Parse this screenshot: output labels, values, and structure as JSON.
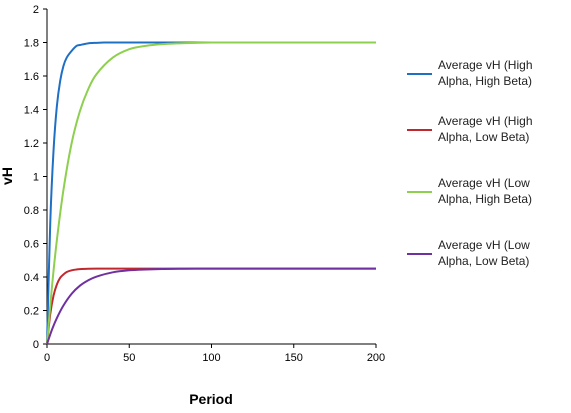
{
  "chart_data": {
    "type": "line",
    "title": "",
    "xlabel": "Period",
    "ylabel": "vH",
    "xlim": [
      0,
      200
    ],
    "ylim": [
      0,
      2
    ],
    "xticks": [
      0,
      50,
      100,
      150,
      200
    ],
    "yticks": [
      0,
      0.2,
      0.4,
      0.6,
      0.8,
      1,
      1.2,
      1.4,
      1.6,
      1.8,
      2
    ],
    "ytick_labels": [
      "0",
      "0.2",
      "0.4",
      "0.6",
      "0.8",
      "1",
      "1.2",
      "1.4",
      "1.6",
      "1.8",
      "2"
    ],
    "grid": false,
    "legend_position": "right",
    "series": [
      {
        "name": "Average vH (High Alpha, High Beta)",
        "legend_lines": [
          "Average vH (High",
          "Alpha, High Beta)"
        ],
        "color": "#1f6fc5",
        "x": [
          0,
          2,
          4,
          6,
          8,
          10,
          12,
          15,
          18,
          20,
          25,
          30,
          35,
          40,
          50,
          60,
          80,
          100,
          150,
          200
        ],
        "y": [
          0,
          0.73,
          1.16,
          1.42,
          1.57,
          1.66,
          1.71,
          1.75,
          1.78,
          1.785,
          1.795,
          1.798,
          1.8,
          1.8,
          1.8,
          1.8,
          1.8,
          1.8,
          1.8,
          1.8
        ]
      },
      {
        "name": "Average vH (High Alpha, Low Beta)",
        "legend_lines": [
          "Average vH (High",
          "Alpha, Low Beta)"
        ],
        "color": "#c0282d",
        "x": [
          0,
          2,
          4,
          6,
          8,
          10,
          12,
          15,
          18,
          20,
          25,
          30,
          40,
          50,
          60,
          80,
          100,
          150,
          200
        ],
        "y": [
          0,
          0.18,
          0.29,
          0.355,
          0.395,
          0.415,
          0.43,
          0.44,
          0.445,
          0.447,
          0.449,
          0.45,
          0.45,
          0.45,
          0.45,
          0.45,
          0.45,
          0.45,
          0.45
        ]
      },
      {
        "name": "Average vH (Low Alpha, High Beta)",
        "legend_lines": [
          "Average vH (Low",
          "Alpha, High Beta)"
        ],
        "color": "#8dcf4e",
        "x": [
          0,
          3,
          6,
          10,
          15,
          20,
          25,
          30,
          40,
          50,
          60,
          70,
          80,
          90,
          100,
          120,
          150,
          200
        ],
        "y": [
          0,
          0.34,
          0.62,
          0.92,
          1.2,
          1.39,
          1.52,
          1.61,
          1.71,
          1.76,
          1.78,
          1.79,
          1.795,
          1.798,
          1.8,
          1.8,
          1.8,
          1.8
        ]
      },
      {
        "name": "Average vH (Low Alpha, Low Beta)",
        "legend_lines": [
          "Average vH (Low",
          "Alpha, Low Beta)"
        ],
        "color": "#7030a0",
        "x": [
          0,
          3,
          6,
          10,
          15,
          20,
          25,
          30,
          40,
          50,
          60,
          70,
          80,
          90,
          100,
          120,
          150,
          200
        ],
        "y": [
          0,
          0.085,
          0.155,
          0.23,
          0.3,
          0.348,
          0.38,
          0.402,
          0.428,
          0.44,
          0.445,
          0.448,
          0.449,
          0.45,
          0.45,
          0.45,
          0.45,
          0.45
        ]
      }
    ]
  }
}
